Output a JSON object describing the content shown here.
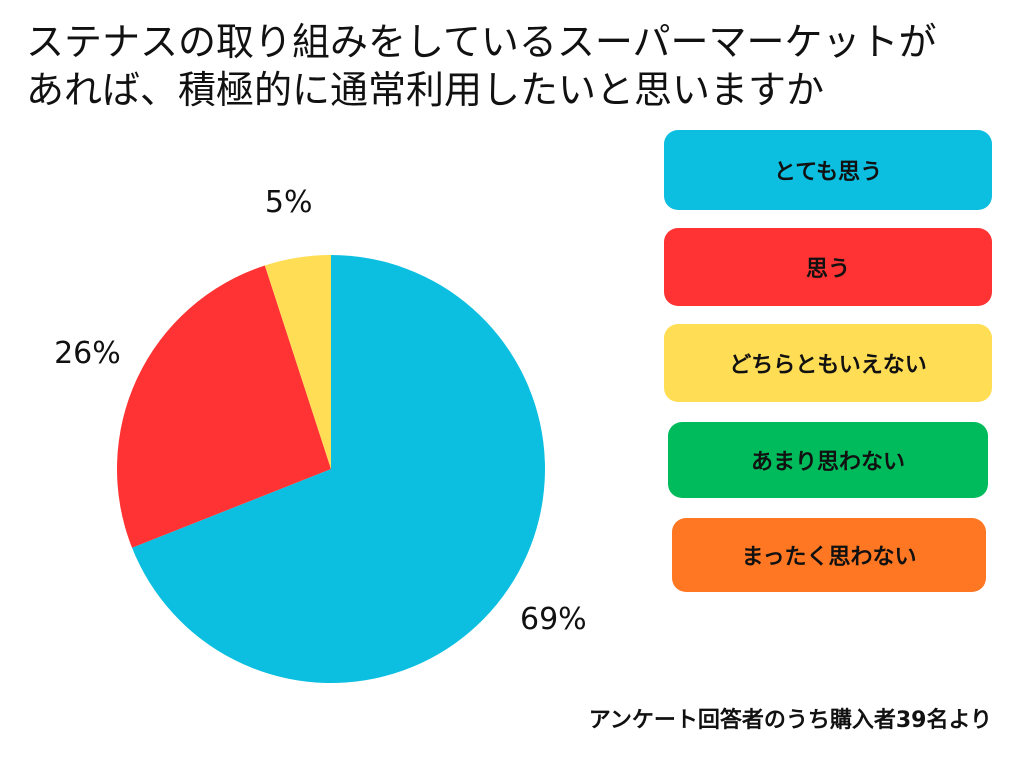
{
  "title": {
    "line1": "ステナスの取り組みをしているスーパーマーケットが",
    "line2": "あれば、積極的に通常利用したいと思いますか"
  },
  "chart_data": {
    "type": "pie",
    "title": "ステナスの取り組みをしているスーパーマーケットがあれば、積極的に通常利用したいと思いますか",
    "slices": [
      {
        "name": "とても思う",
        "value": 69,
        "label": "69%",
        "color": "#0CBFE0"
      },
      {
        "name": "思う",
        "value": 26,
        "label": "26%",
        "color": "#FF3333"
      },
      {
        "name": "どちらともいえない",
        "value": 5,
        "label": "5%",
        "color": "#FFDD55"
      },
      {
        "name": "あまり思わない",
        "value": 0,
        "label": "",
        "color": "#00BB5C"
      },
      {
        "name": "まったく思わない",
        "value": 0,
        "label": "",
        "color": "#FF7722"
      }
    ],
    "start": "12 o'clock",
    "direction": "clockwise",
    "legend_placement": "right"
  },
  "legend": {
    "items": [
      {
        "label": "とても思う",
        "color": "#0CBFE0"
      },
      {
        "label": "思う",
        "color": "#FF3333"
      },
      {
        "label": "どちらともいえない",
        "color": "#FFDD55"
      },
      {
        "label": "あまり思わない",
        "color": "#00BB5C"
      },
      {
        "label": "まったく思わない",
        "color": "#FF7722"
      }
    ]
  },
  "footnote": "アンケート回答者のうち購入者39名より"
}
